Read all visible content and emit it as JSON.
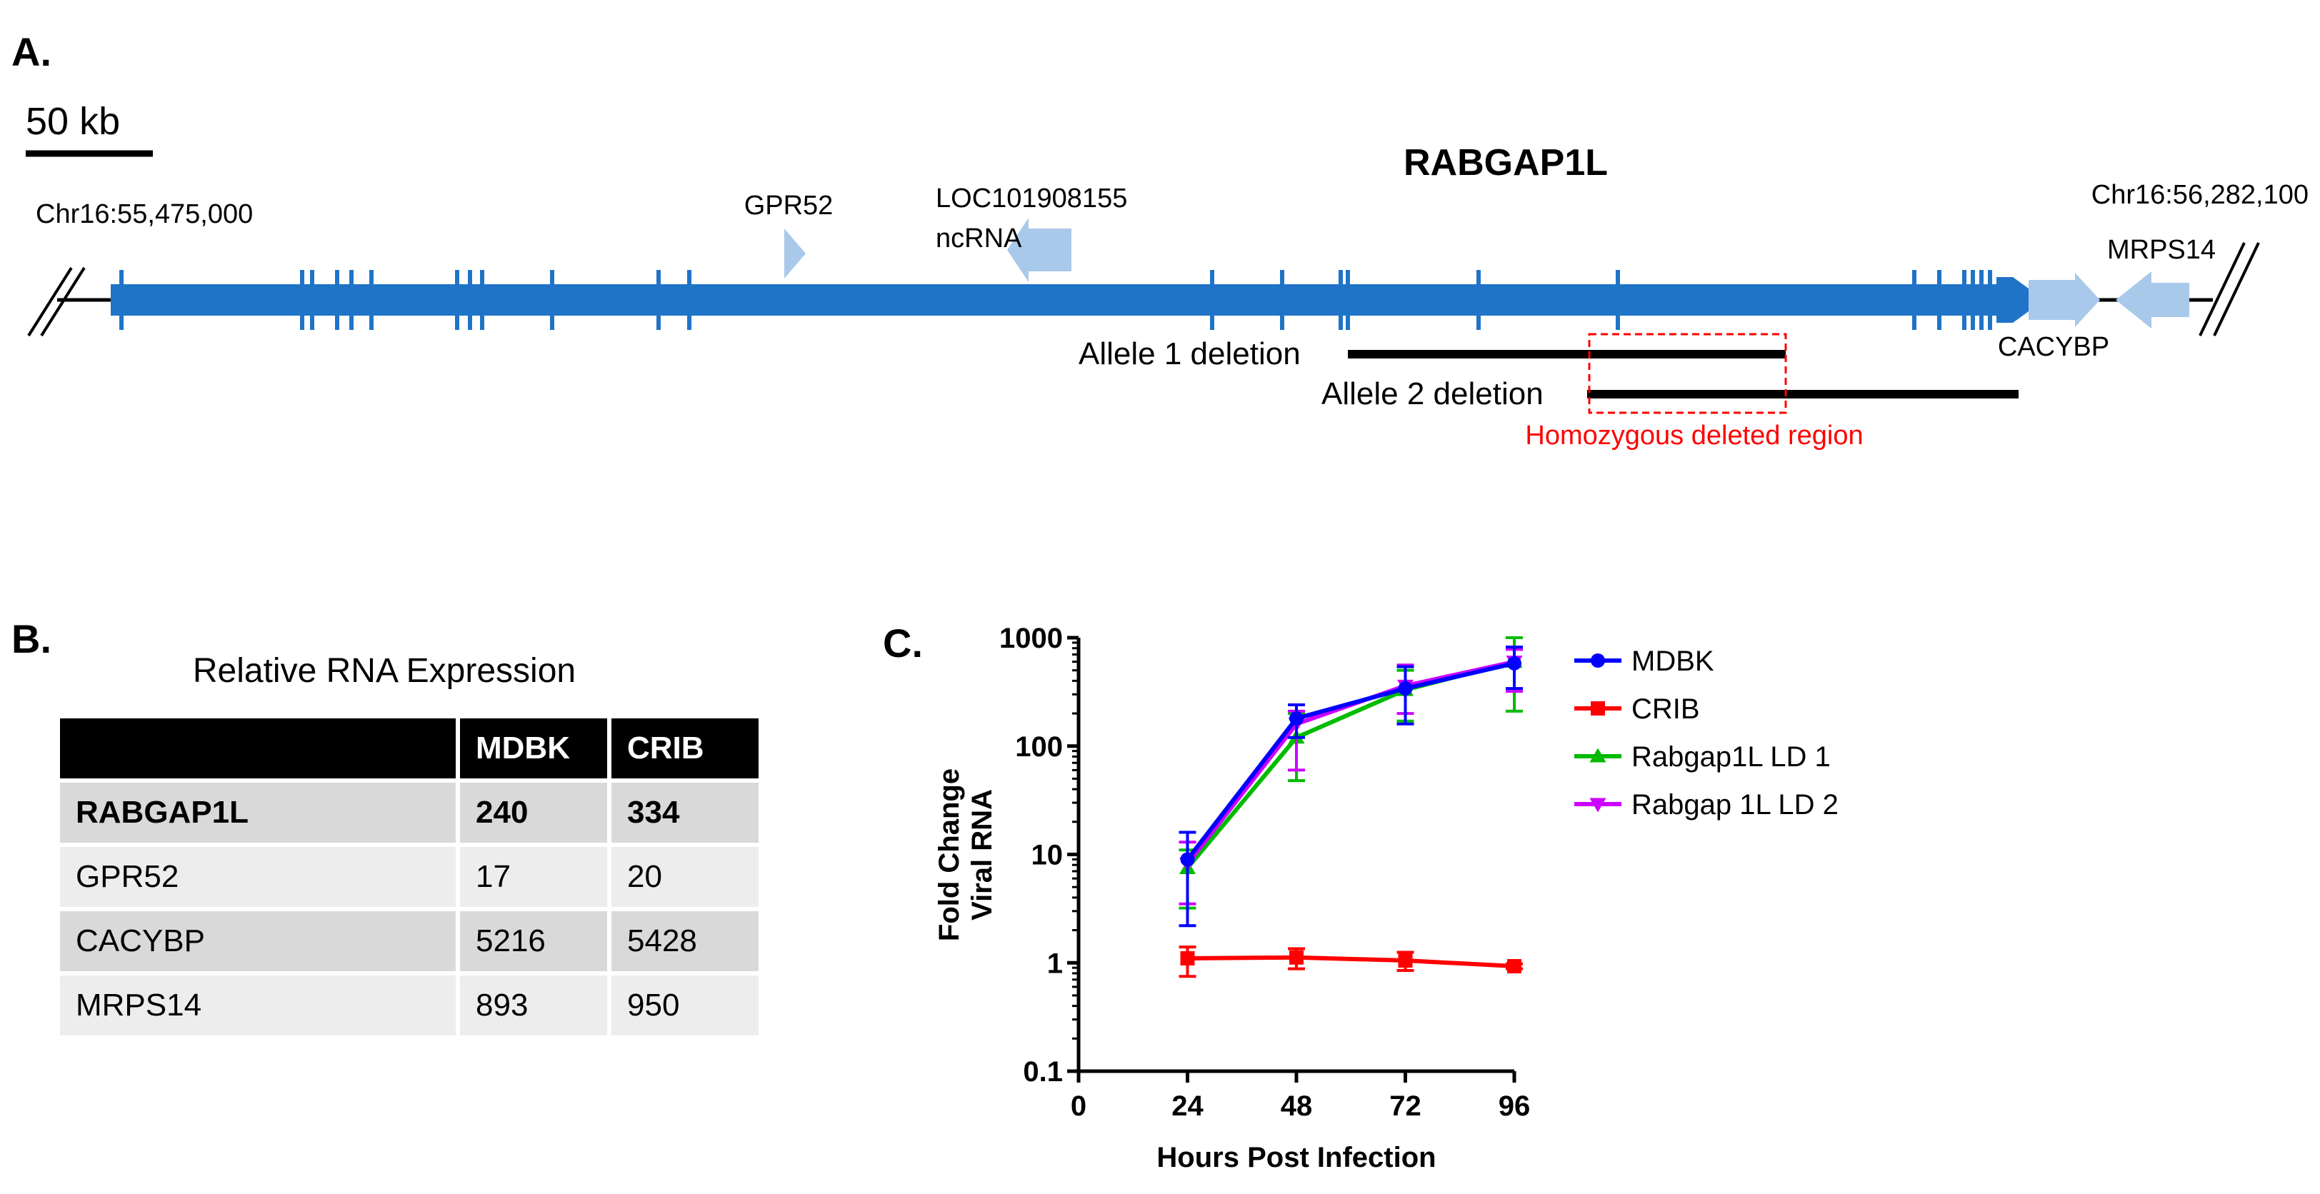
{
  "panel_a": {
    "label": "A.",
    "scale_bar": "50 kb",
    "gene_title": "RABGAP1L",
    "left_coord": "Chr16:55,475,000",
    "right_coord": "Chr16:56,282,100",
    "genes": {
      "gpr52": "GPR52",
      "loc": "LOC101908155",
      "ncrna": "ncRNA",
      "cacybp": "CACYBP",
      "mrps14": "MRPS14"
    },
    "allele1": "Allele 1 deletion",
    "allele2": "Allele 2 deletion",
    "homozygous": "Homozygous deleted region",
    "colors": {
      "gene": "#1f74c8",
      "neighbor": "#a9c9ea",
      "highlight": "#ff0000"
    }
  },
  "panel_b": {
    "label": "B.",
    "title": "Relative RNA Expression",
    "columns": [
      "",
      "MDBK",
      "CRIB"
    ],
    "rows": [
      [
        "RABGAP1L",
        "240",
        "334"
      ],
      [
        "GPR52",
        "17",
        "20"
      ],
      [
        "CACYBP",
        "5216",
        "5428"
      ],
      [
        "MRPS14",
        "893",
        "950"
      ]
    ]
  },
  "panel_c": {
    "label": "C."
  },
  "chart_data": {
    "type": "line",
    "title": "",
    "xlabel": "Hours Post Infection",
    "ylabel": "Fold Change Viral RNA",
    "ylabel_lines": [
      "Fold Change",
      "Viral RNA"
    ],
    "yscale": "log",
    "ylim": [
      0.1,
      1000
    ],
    "xlim": [
      0,
      96
    ],
    "xticks": [
      0,
      24,
      48,
      72,
      96
    ],
    "xtick_labels": [
      "0",
      "24",
      "48",
      "72",
      "96"
    ],
    "yticks": [
      0.1,
      1,
      10,
      100,
      1000
    ],
    "ytick_labels": [
      "0.1",
      "1",
      "10",
      "100",
      "1000"
    ],
    "x": [
      24,
      48,
      72,
      96
    ],
    "legend_position": "right",
    "series": [
      {
        "name": "MDBK",
        "color": "#0000ff",
        "marker": "circle",
        "values": [
          9,
          180,
          340,
          580
        ],
        "err_low": [
          2.2,
          120,
          160,
          340
        ],
        "err_high": [
          16,
          240,
          540,
          820
        ]
      },
      {
        "name": "CRIB",
        "color": "#ff0000",
        "marker": "square",
        "values": [
          1.1,
          1.12,
          1.05,
          0.93
        ],
        "err_low": [
          0.75,
          0.88,
          0.85,
          0.88
        ],
        "err_high": [
          1.4,
          1.35,
          1.25,
          0.98
        ]
      },
      {
        "name": "Rabgap1L LD 1",
        "color": "#00bb00",
        "marker": "triangle-up",
        "values": [
          7.5,
          120,
          330,
          600
        ],
        "err_low": [
          3.2,
          48,
          170,
          210
        ],
        "err_high": [
          11,
          200,
          500,
          1000
        ]
      },
      {
        "name": "Rabgap 1L LD 2",
        "color": "#cc00ff",
        "marker": "triangle-down",
        "values": [
          8.2,
          160,
          360,
          600
        ],
        "err_low": [
          3.5,
          60,
          200,
          320
        ],
        "err_high": [
          13,
          210,
          560,
          780
        ]
      }
    ]
  }
}
